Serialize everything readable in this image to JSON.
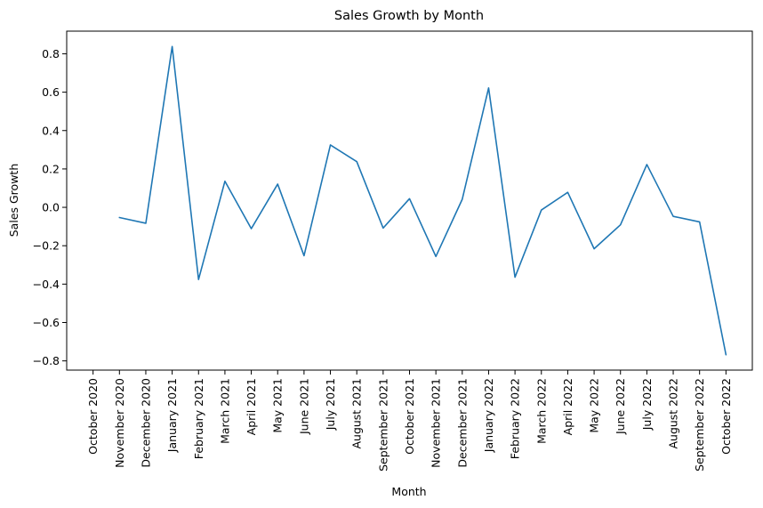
{
  "chart_data": {
    "type": "line",
    "title": "Sales Growth by Month",
    "xlabel": "Month",
    "ylabel": "Sales Growth",
    "categories": [
      "October 2020",
      "November 2020",
      "December 2020",
      "January 2021",
      "February 2021",
      "March 2021",
      "April 2021",
      "May 2021",
      "June 2021",
      "July 2021",
      "August 2021",
      "September 2021",
      "October 2021",
      "November 2021",
      "December 2021",
      "January 2022",
      "February 2022",
      "March 2022",
      "April 2022",
      "May 2022",
      "June 2022",
      "July 2022",
      "August 2022",
      "September 2022",
      "October 2022"
    ],
    "series": [
      {
        "color": "#1f77b4",
        "values": [
          null,
          -0.053,
          -0.083,
          0.838,
          -0.376,
          0.136,
          -0.111,
          0.121,
          -0.252,
          0.325,
          0.238,
          -0.108,
          0.045,
          -0.256,
          0.042,
          0.622,
          -0.364,
          -0.014,
          0.078,
          -0.216,
          -0.091,
          0.223,
          -0.047,
          -0.076,
          -0.768
        ]
      }
    ],
    "yticks": [
      "−0.8",
      "−0.6",
      "−0.4",
      "−0.2",
      "0.0",
      "0.2",
      "0.4",
      "0.6",
      "0.8"
    ],
    "ytick_values": [
      -0.8,
      -0.6,
      -0.4,
      -0.2,
      0.0,
      0.2,
      0.4,
      0.6,
      0.8
    ],
    "ylim": [
      -0.848,
      0.918
    ],
    "grid": false,
    "legend": "none"
  }
}
